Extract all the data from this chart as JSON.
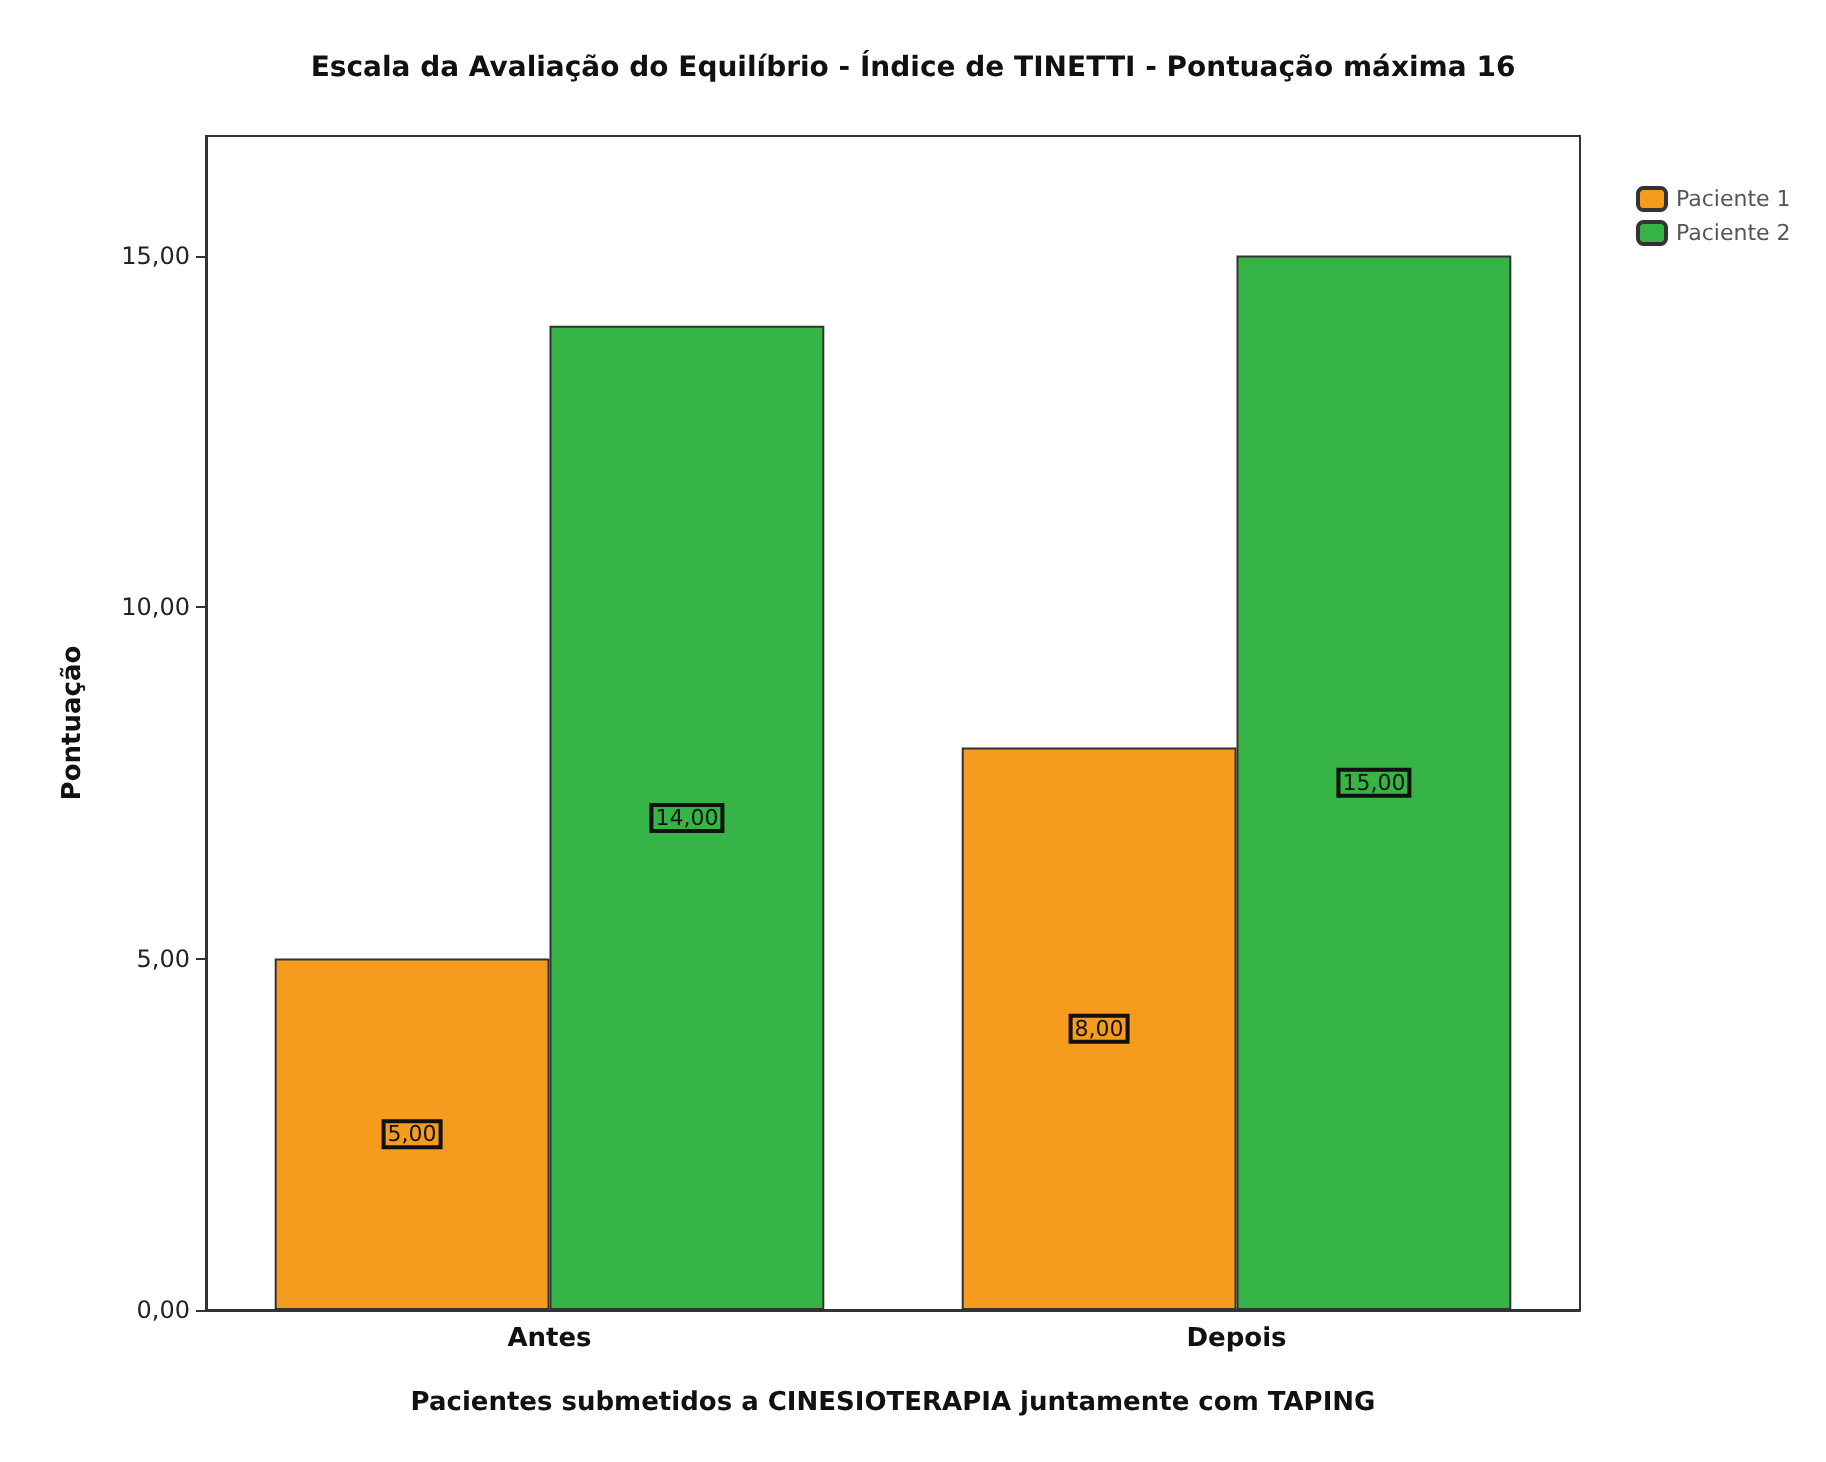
{
  "chart_data": {
    "type": "bar",
    "title": "Escala da Avaliação do Equilíbrio - Índice de TINETTI - Pontuação máxima 16",
    "xlabel": "Pacientes submetidos a CINESIOTERAPIA juntamente com TAPING",
    "ylabel": "Pontuação",
    "categories": [
      "Antes",
      "Depois"
    ],
    "series": [
      {
        "name": "Paciente 1",
        "color": "#f59c1f",
        "values": [
          5,
          8
        ],
        "value_labels": [
          "5,00",
          "8,00"
        ]
      },
      {
        "name": "Paciente 2",
        "color": "#36b546",
        "values": [
          14,
          15
        ],
        "value_labels": [
          "14,00",
          "15,00"
        ]
      }
    ],
    "ylim": [
      0,
      16.7
    ],
    "yticks": [
      {
        "value": 0,
        "label": "0,00"
      },
      {
        "value": 5,
        "label": "5,00"
      },
      {
        "value": 10,
        "label": "10,00"
      },
      {
        "value": 15,
        "label": "15,00"
      }
    ],
    "grid": false,
    "legend": "top right"
  }
}
